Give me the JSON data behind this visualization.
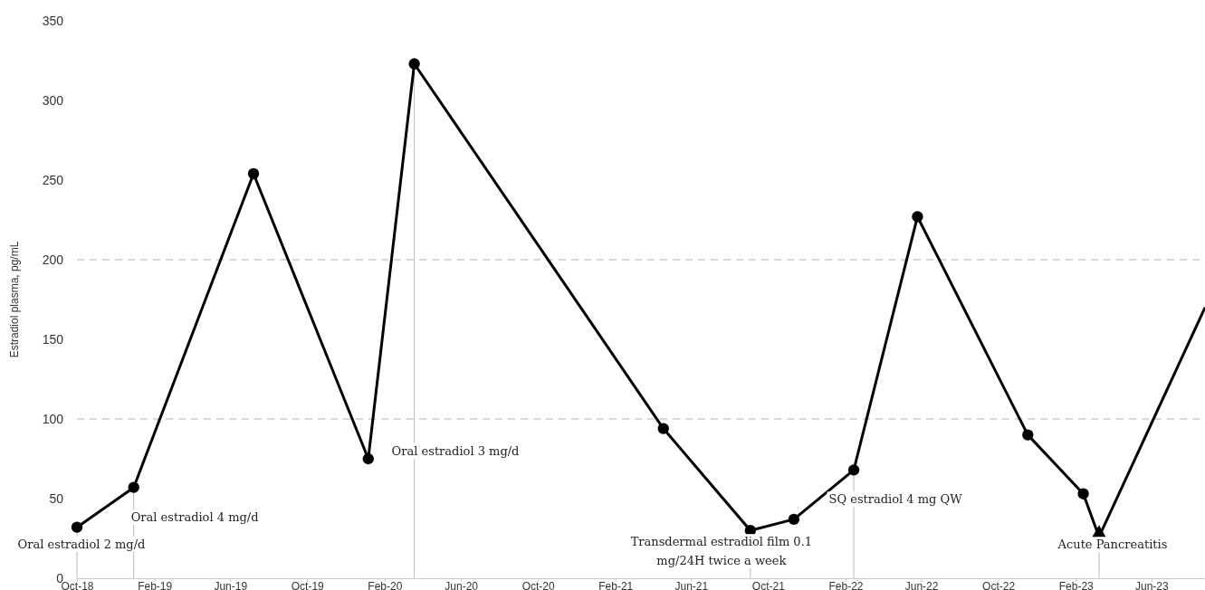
{
  "chart_data": {
    "type": "line",
    "ylabel": "Estradiol plasma, pg/mL",
    "xlim": [
      "2018-10-01",
      "2023-08-25"
    ],
    "ylim": [
      0,
      350
    ],
    "yticks": [
      0,
      50,
      100,
      150,
      200,
      250,
      300,
      350
    ],
    "xticks": [
      {
        "value": "2018-10-01",
        "label": "Oct-18"
      },
      {
        "value": "2019-02-01",
        "label": "Feb-19"
      },
      {
        "value": "2019-06-01",
        "label": "Jun-19"
      },
      {
        "value": "2019-10-01",
        "label": "Oct-19"
      },
      {
        "value": "2020-02-01",
        "label": "Feb-20"
      },
      {
        "value": "2020-06-01",
        "label": "Jun-20"
      },
      {
        "value": "2020-10-01",
        "label": "Oct-20"
      },
      {
        "value": "2021-02-01",
        "label": "Feb-21"
      },
      {
        "value": "2021-06-01",
        "label": "Jun-21"
      },
      {
        "value": "2021-10-01",
        "label": "Oct-21"
      },
      {
        "value": "2022-02-01",
        "label": "Feb-22"
      },
      {
        "value": "2022-06-01",
        "label": "Jun-22"
      },
      {
        "value": "2022-10-01",
        "label": "Oct-22"
      },
      {
        "value": "2023-02-01",
        "label": "Feb-23"
      },
      {
        "value": "2023-06-01",
        "label": "Jun-23"
      }
    ],
    "grid": false,
    "ref_lines": [
      {
        "axis": "x",
        "value": "2020-03-19",
        "label": "Oral estradiol 3 mg/d",
        "color": "#bbbbbb",
        "line_style": "solid"
      },
      {
        "axis": "y",
        "value": 100,
        "color": "#cccccc",
        "line_style": "dashed"
      },
      {
        "axis": "y",
        "value": 200,
        "color": "#cccccc",
        "line_style": "dashed"
      }
    ],
    "series": [
      {
        "marker": "none",
        "color": "#000000",
        "x": [
          "2018-10-01",
          "2018-12-30",
          "2019-07-08",
          "2020-01-06",
          "2020-03-19",
          "2021-04-18",
          "2021-09-03",
          "2021-11-11",
          "2022-02-14",
          "2022-05-26",
          "2022-11-17",
          "2023-02-13",
          "2023-03-10",
          "2023-08-25"
        ],
        "values": [
          32,
          57,
          254,
          75,
          323,
          94,
          30,
          37,
          68,
          227,
          90,
          53,
          26,
          170
        ]
      },
      {
        "type": "scatter",
        "marker": "circle",
        "color": "#000000",
        "x": [
          "2018-10-01",
          "2018-12-30",
          "2019-07-08",
          "2020-01-06",
          "2020-03-19",
          "2021-04-18",
          "2021-09-03",
          "2021-11-11",
          "2022-02-14",
          "2022-05-26",
          "2022-11-17",
          "2023-02-13"
        ],
        "values": [
          32,
          57,
          254,
          75,
          323,
          94,
          30,
          37,
          68,
          227,
          90,
          53
        ]
      },
      {
        "type": "scatter",
        "marker": "triangle",
        "color": "#000000",
        "x": [
          "2023-03-10"
        ],
        "values": [
          26
        ]
      }
    ],
    "annotations": [
      {
        "text": "Oral estradiol 2 mg/d",
        "x": "2018-10-01",
        "y": 32
      },
      {
        "text": "Oral estradiol 4 mg/d",
        "x": "2018-12-30",
        "y": 57
      },
      {
        "text": "Transdermal estradiol film 0.1 mg/24H twice a week",
        "x": "2021-09-03",
        "y": 30
      },
      {
        "text": "SQ estradiol 4 mg QW",
        "x": "2022-02-14",
        "y": 68
      },
      {
        "text": "Acute Pancreatitis",
        "x": "2023-03-10",
        "y": 26
      }
    ]
  }
}
